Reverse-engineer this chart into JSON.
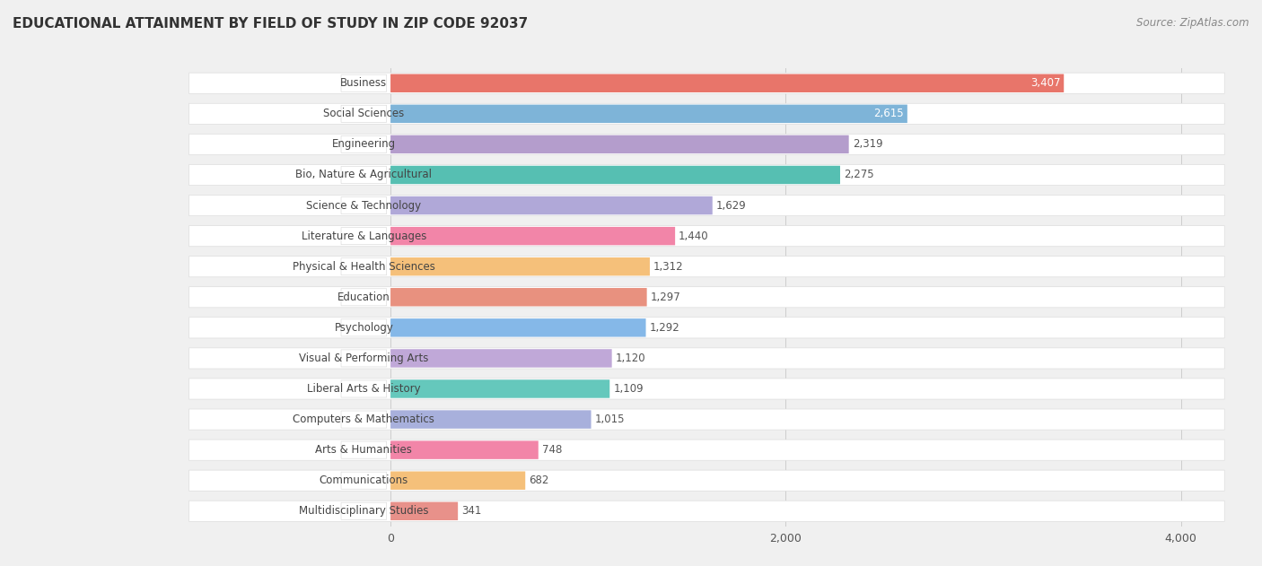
{
  "title": "EDUCATIONAL ATTAINMENT BY FIELD OF STUDY IN ZIP CODE 92037",
  "source": "Source: ZipAtlas.com",
  "categories": [
    "Business",
    "Social Sciences",
    "Engineering",
    "Bio, Nature & Agricultural",
    "Science & Technology",
    "Literature & Languages",
    "Physical & Health Sciences",
    "Education",
    "Psychology",
    "Visual & Performing Arts",
    "Liberal Arts & History",
    "Computers & Mathematics",
    "Arts & Humanities",
    "Communications",
    "Multidisciplinary Studies"
  ],
  "values": [
    3407,
    2615,
    2319,
    2275,
    1629,
    1440,
    1312,
    1297,
    1292,
    1120,
    1109,
    1015,
    748,
    682,
    341
  ],
  "bar_colors": [
    "#e8756a",
    "#7eb4d8",
    "#b49dcc",
    "#56bfb2",
    "#b0a8d8",
    "#f285a8",
    "#f5c07a",
    "#e8917f",
    "#85b8e8",
    "#c0a8d8",
    "#65c8bc",
    "#a8b0dc",
    "#f285a8",
    "#f5c07a",
    "#e8918a"
  ],
  "value_label_inside": [
    true,
    true,
    false,
    false,
    false,
    false,
    false,
    false,
    false,
    false,
    false,
    false,
    false,
    false,
    false
  ],
  "xlim_min": 0,
  "xlim_max": 4000,
  "background_color": "#f0f0f0",
  "row_bg_color": "#ffffff",
  "title_fontsize": 11,
  "source_fontsize": 8.5,
  "bar_fontsize": 8.5,
  "value_fontsize": 8.5
}
